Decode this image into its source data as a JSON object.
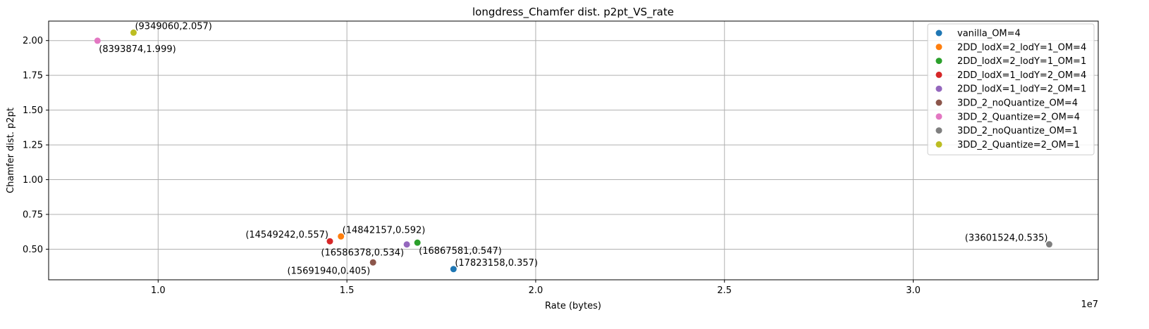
{
  "chart_data": {
    "type": "scatter",
    "title": "longdress_Chamfer dist. p2pt_VS_rate",
    "xlabel": "Rate (bytes)",
    "ylabel": "Chamfer dist. p2pt",
    "x_offset_text": "1e7",
    "x_scale": 10000000,
    "xlim": [
      7100000,
      34900000
    ],
    "ylim": [
      0.28,
      2.14
    ],
    "x_ticks": [
      1.0,
      1.5,
      2.0,
      2.5,
      3.0
    ],
    "x_tick_labels": [
      "1.0",
      "1.5",
      "2.0",
      "2.5",
      "3.0"
    ],
    "y_ticks": [
      0.5,
      0.75,
      1.0,
      1.25,
      1.5,
      1.75,
      2.0
    ],
    "y_tick_labels": [
      "0.50",
      "0.75",
      "1.00",
      "1.25",
      "1.50",
      "1.75",
      "2.00"
    ],
    "grid": true,
    "legend_position": "top-right",
    "series": [
      {
        "name": "vanilla_OM=4",
        "color": "#1f77b4",
        "x": 17823158,
        "y": 0.357,
        "label": "(17823158,0.357)",
        "label_side": "right"
      },
      {
        "name": "2DD_lodX=2_lodY=1_OM=4",
        "color": "#ff7f0e",
        "x": 14842157,
        "y": 0.592,
        "label": "(14842157,0.592)",
        "label_side": "right"
      },
      {
        "name": "2DD_lodX=2_lodY=1_OM=1",
        "color": "#2ca02c",
        "x": 16867581,
        "y": 0.547,
        "label": "(16867581,0.547)",
        "label_side": "right-below"
      },
      {
        "name": "2DD_lodX=1_lodY=2_OM=4",
        "color": "#d62728",
        "x": 14549242,
        "y": 0.557,
        "label": "(14549242,0.557)",
        "label_side": "left"
      },
      {
        "name": "2DD_lodX=1_lodY=2_OM=1",
        "color": "#9467bd",
        "x": 16586378,
        "y": 0.534,
        "label": "(16586378,0.534)",
        "label_side": "left-below"
      },
      {
        "name": "3DD_2_noQuantize_OM=4",
        "color": "#8c564b",
        "x": 15691940,
        "y": 0.405,
        "label": "(15691940,0.405)",
        "label_side": "left-below"
      },
      {
        "name": "3DD_2_Quantize=2_OM=4",
        "color": "#e377c2",
        "x": 8393874,
        "y": 1.999,
        "label": "(8393874,1.999)",
        "label_side": "right-below"
      },
      {
        "name": "3DD_2_noQuantize_OM=1",
        "color": "#7f7f7f",
        "x": 33601524,
        "y": 0.535,
        "label": "(33601524,0.535)",
        "label_side": "left"
      },
      {
        "name": "3DD_2_Quantize=2_OM=1",
        "color": "#bcbd22",
        "x": 9349060,
        "y": 2.057,
        "label": "(9349060,2.057)",
        "label_side": "right"
      }
    ]
  }
}
